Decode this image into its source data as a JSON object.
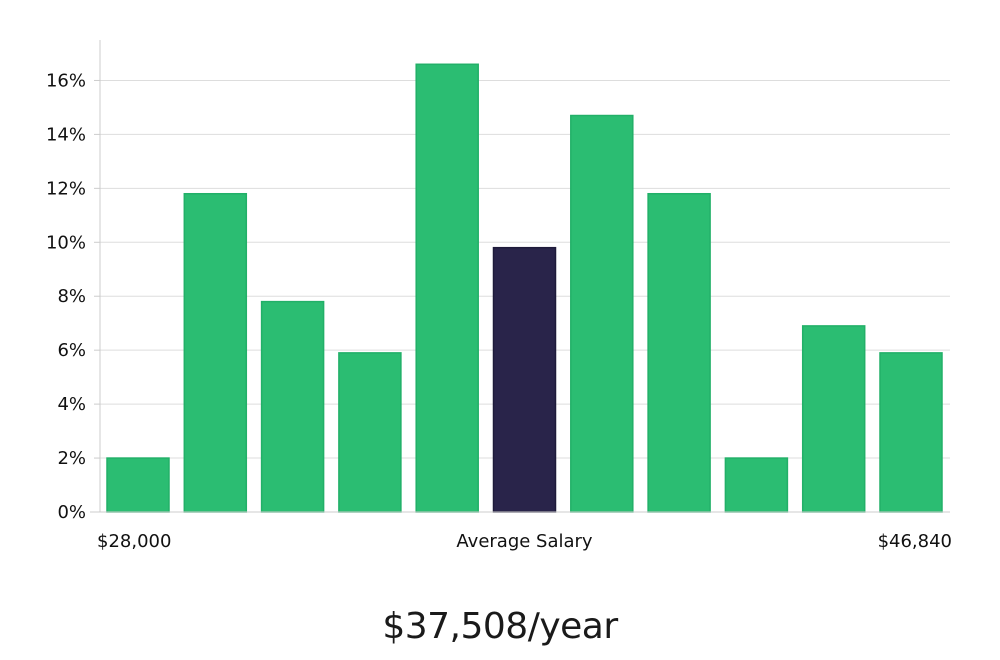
{
  "chart_data": {
    "type": "bar",
    "categories": [
      "1",
      "2",
      "3",
      "4",
      "5",
      "6",
      "7",
      "8",
      "9",
      "10",
      "11"
    ],
    "values": [
      2,
      11.8,
      7.8,
      5.9,
      16.6,
      9.8,
      14.7,
      11.8,
      2,
      6.9,
      5.9
    ],
    "highlight_index": 5,
    "ylim": [
      0,
      17.5
    ],
    "yticks": [
      0,
      2,
      4,
      6,
      8,
      10,
      12,
      14,
      16
    ],
    "ytick_suffix": "%",
    "grid": true,
    "x_labels": {
      "left": "$28,000",
      "center": "Average Salary",
      "right": "$46,840"
    },
    "colors": {
      "bar": "#2bbd72",
      "highlight": "#29244a",
      "grid": "#dddddd",
      "axis": "#cccccc"
    }
  },
  "summary": "$37,508/year"
}
